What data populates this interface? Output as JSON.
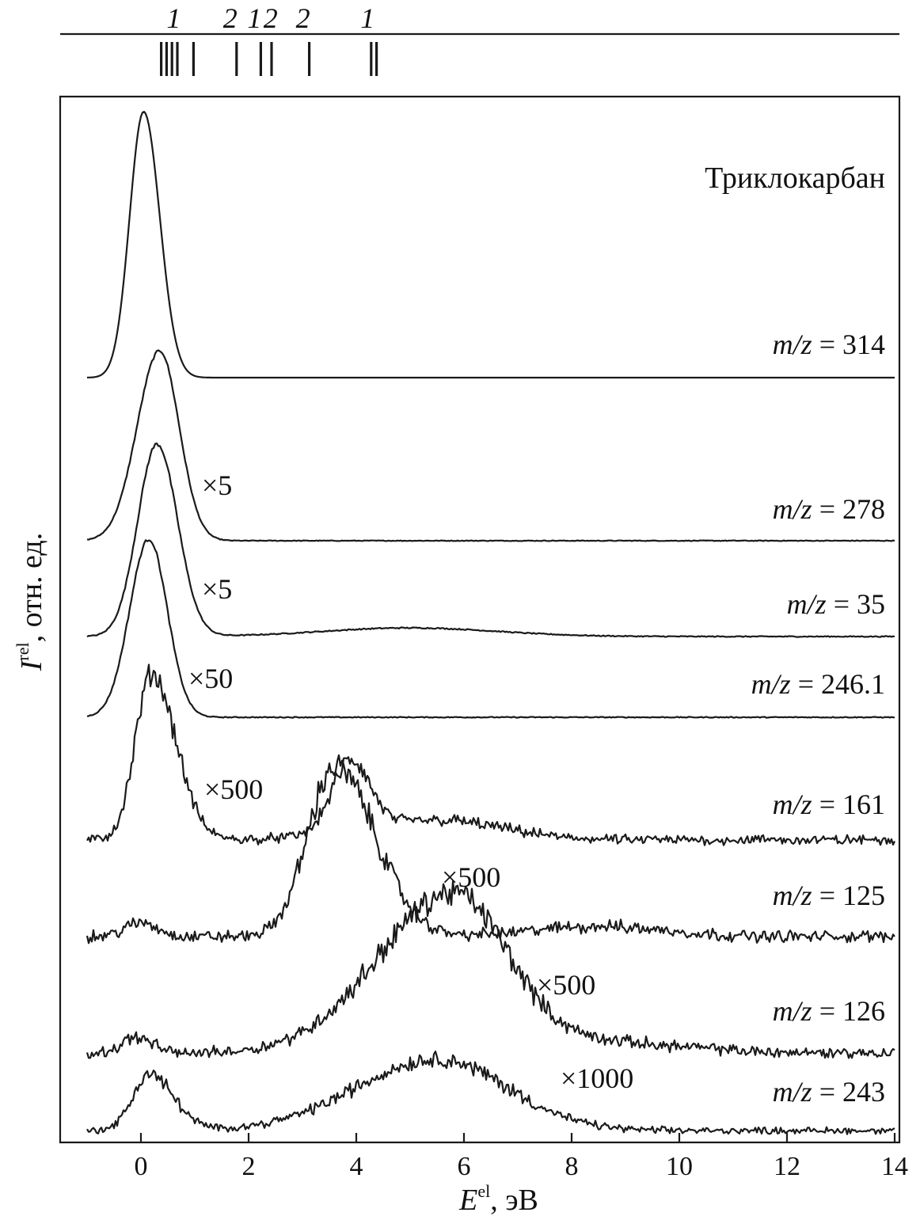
{
  "chart_data": {
    "type": "line",
    "title": "Триклокарбан",
    "xlabel": "E^el, эВ",
    "xlabel_main": "E",
    "xlabel_sup": "el",
    "xlabel_unit": ", эВ",
    "ylabel": "I^rel, отн. ед.",
    "ylabel_main": "I",
    "ylabel_sup": "rel",
    "ylabel_unit": ", отн. ед.",
    "xlim": [
      -1,
      14
    ],
    "x_ticks": [
      0,
      2,
      4,
      6,
      8,
      10,
      12,
      14
    ],
    "x_tick_labels": [
      "0",
      "2",
      "4",
      "6",
      "8",
      "10",
      "12",
      "14"
    ],
    "grid": false,
    "top_markers": {
      "labels": [
        {
          "text": "1",
          "x": 0.55
        },
        {
          "text": "2",
          "x": 1.6
        },
        {
          "text": "1",
          "x": 2.05
        },
        {
          "text": "2",
          "x": 2.35
        },
        {
          "text": "2",
          "x": 2.95
        },
        {
          "text": "1",
          "x": 4.15
        }
      ],
      "positions": [
        0.2,
        0.3,
        0.4,
        0.5,
        0.8,
        1.6,
        2.05,
        2.25,
        2.95,
        4.1,
        4.2
      ]
    },
    "series": [
      {
        "name": "m/z = 314",
        "mz": "314",
        "multiplier": "",
        "noise": 0.0,
        "peaks": [
          {
            "center": 0.05,
            "height": 1.0,
            "width_left": 0.26,
            "width_right": 0.3
          }
        ]
      },
      {
        "name": "m/z = 278",
        "mz": "278",
        "multiplier": "×5",
        "noise": 0.015,
        "peaks": [
          {
            "center": 0.35,
            "height": 1.0,
            "width_left": 0.42,
            "width_right": 0.36
          }
        ]
      },
      {
        "name": "m/z = 35",
        "mz": "35",
        "multiplier": "×5",
        "noise": 0.02,
        "peaks": [
          {
            "center": 0.3,
            "height": 1.0,
            "width_left": 0.36,
            "width_right": 0.38
          },
          {
            "center": 5.0,
            "height": 0.045,
            "width_left": 1.6,
            "width_right": 1.6
          }
        ]
      },
      {
        "name": "m/z = 246.1",
        "mz": "246.1",
        "multiplier": "×50",
        "noise": 0.02,
        "peaks": [
          {
            "center": 0.15,
            "height": 1.0,
            "width_left": 0.36,
            "width_right": 0.34
          }
        ]
      },
      {
        "name": "m/z = 161",
        "mz": "161",
        "multiplier": "×500",
        "noise": 0.12,
        "peaks": [
          {
            "center": 0.2,
            "height": 1.0,
            "width_left": 0.3,
            "width_right": 0.45
          },
          {
            "center": 3.9,
            "height": 0.42,
            "width_left": 0.35,
            "width_right": 0.35
          },
          {
            "center": 5.5,
            "height": 0.12,
            "width_left": 1.4,
            "width_right": 1.2
          }
        ]
      },
      {
        "name": "m/z = 125",
        "mz": "125",
        "multiplier": "×500",
        "noise": 0.14,
        "peaks": [
          {
            "center": 3.6,
            "height": 1.0,
            "width_left": 0.5,
            "width_right": 0.75
          },
          {
            "center": 0.0,
            "height": 0.08,
            "width_left": 0.3,
            "width_right": 0.3
          },
          {
            "center": 8.5,
            "height": 0.06,
            "width_left": 1.2,
            "width_right": 1.2
          }
        ]
      },
      {
        "name": "m/z = 126",
        "mz": "126",
        "multiplier": "×500",
        "noise": 0.14,
        "peaks": [
          {
            "center": 5.8,
            "height": 1.0,
            "width_left": 1.4,
            "width_right": 1.0
          },
          {
            "center": -0.1,
            "height": 0.1,
            "width_left": 0.25,
            "width_right": 0.3
          },
          {
            "center": 8.5,
            "height": 0.07,
            "width_left": 1.5,
            "width_right": 1.5
          }
        ]
      },
      {
        "name": "m/z = 243",
        "mz": "243",
        "multiplier": "×1000",
        "noise": 0.18,
        "peaks": [
          {
            "center": 0.15,
            "height": 0.75,
            "width_left": 0.3,
            "width_right": 0.45
          },
          {
            "center": 5.5,
            "height": 0.95,
            "width_left": 1.5,
            "width_right": 1.3
          }
        ]
      }
    ]
  }
}
